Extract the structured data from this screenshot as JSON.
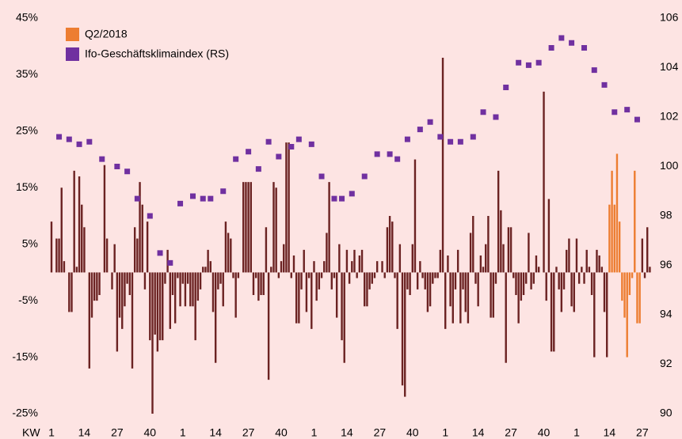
{
  "chart_data": {
    "type": "bar",
    "x_label": "KW",
    "categories": [
      "1",
      null,
      null,
      null,
      null,
      null,
      null,
      null,
      null,
      null,
      null,
      null,
      null,
      "14",
      null,
      null,
      null,
      null,
      null,
      null,
      null,
      null,
      null,
      null,
      null,
      null,
      "27",
      null,
      null,
      null,
      null,
      null,
      null,
      null,
      null,
      null,
      null,
      null,
      null,
      "40",
      null,
      null,
      null,
      null,
      null,
      null,
      null,
      null,
      null,
      null,
      null,
      null,
      "1",
      null,
      null,
      null,
      null,
      null,
      null,
      null,
      null,
      null,
      null,
      null,
      null,
      "14",
      null,
      null,
      null,
      null,
      null,
      null,
      null,
      null,
      null,
      null,
      null,
      null,
      "27",
      null,
      null,
      null,
      null,
      null,
      null,
      null,
      null,
      null,
      null,
      null,
      null,
      "40",
      null,
      null,
      null,
      null,
      null,
      null,
      null,
      null,
      null,
      null,
      null,
      null,
      "1",
      null,
      null,
      null,
      null,
      null,
      null,
      null,
      null,
      null,
      null,
      null,
      null,
      "14",
      null,
      null,
      null,
      null,
      null,
      null,
      null,
      null,
      null,
      null,
      null,
      null,
      "27",
      null,
      null,
      null,
      null,
      null,
      null,
      null,
      null,
      null,
      null,
      null,
      null,
      "40",
      null,
      null,
      null,
      null,
      null,
      null,
      null,
      null,
      null,
      null,
      null,
      null,
      "1",
      null,
      null,
      null,
      null,
      null,
      null,
      null,
      null,
      null,
      null,
      null,
      null,
      "14",
      null,
      null,
      null,
      null,
      null,
      null,
      null,
      null,
      null,
      null,
      null,
      null,
      "27",
      null,
      null,
      null,
      null,
      null,
      null,
      null,
      null,
      null,
      null,
      null,
      null,
      "40",
      null,
      null,
      null,
      null,
      null,
      null,
      null,
      null,
      null,
      null,
      null,
      null,
      "1",
      null,
      null,
      null,
      null,
      null,
      null,
      null,
      null,
      null,
      null,
      null,
      null,
      "14",
      null,
      null,
      null,
      null,
      null,
      null,
      null,
      null,
      null,
      null,
      null,
      null,
      "27",
      null,
      null,
      null
    ],
    "series": [
      {
        "color": "#6b2222",
        "values": [
          9,
          0,
          6,
          6,
          15,
          2,
          0,
          -7,
          -7,
          18,
          1,
          17,
          12,
          8,
          0,
          -17,
          -8,
          -5,
          -5,
          -4,
          0,
          19,
          6,
          0,
          -3,
          5,
          -14,
          -8,
          -10,
          -6,
          -2,
          -4,
          -17,
          8,
          6,
          16,
          12,
          -3,
          9,
          -12,
          -25,
          -11,
          -14,
          -12,
          -12,
          -2,
          4,
          -10,
          -4,
          -9,
          -1,
          -6,
          -2,
          -6,
          -2,
          -6,
          -6,
          -12,
          -5,
          -3,
          1,
          1,
          4,
          2,
          -7,
          -16,
          -3,
          -2,
          -6,
          9,
          7,
          6,
          -1,
          -8,
          -1,
          0,
          16,
          16,
          16,
          16,
          -4,
          -1,
          -5,
          -4,
          -4,
          8,
          -19,
          1,
          16,
          15,
          -1,
          2,
          5,
          23,
          23,
          -1,
          3,
          -9,
          -9,
          -3,
          4,
          -7,
          -1,
          -10,
          2,
          -5,
          -3,
          -1,
          2,
          7,
          16,
          -3,
          -1,
          -8,
          5,
          -12,
          -16,
          4,
          -2,
          2,
          4,
          -1,
          3,
          4,
          -6,
          -6,
          -3,
          -2,
          -1,
          2,
          0,
          2,
          -1,
          8,
          10,
          9,
          -1,
          -10,
          5,
          -20,
          -22,
          -3,
          -4,
          5,
          20,
          -3,
          2,
          -1,
          -3,
          -7,
          -6,
          -2,
          -1,
          -1,
          4,
          38,
          -10,
          3,
          -6,
          -9,
          -3,
          4,
          -9,
          -3,
          -7,
          -9,
          7,
          10,
          -2,
          -6,
          3,
          1,
          5,
          10,
          -8,
          -8,
          -2,
          18,
          11,
          5,
          -16,
          8,
          8,
          -1,
          -4,
          -9,
          -5,
          -4,
          -2,
          7,
          -3,
          -2,
          3,
          1,
          0,
          32,
          -5,
          13,
          -14,
          -14,
          1,
          -3,
          -7,
          -3,
          4,
          6,
          -6,
          -7,
          6,
          -2,
          1,
          -2,
          4,
          1,
          -4,
          -15,
          4,
          3,
          1,
          -7,
          -15,
          null,
          null,
          null,
          null,
          null,
          null,
          null,
          null,
          null,
          null,
          null,
          null,
          null,
          6,
          -1,
          8,
          1
        ]
      },
      {
        "name": "Q2/2018",
        "color": "#ed7d31",
        "values": [
          null,
          null,
          null,
          null,
          null,
          null,
          null,
          null,
          null,
          null,
          null,
          null,
          null,
          null,
          null,
          null,
          null,
          null,
          null,
          null,
          null,
          null,
          null,
          null,
          null,
          null,
          null,
          null,
          null,
          null,
          null,
          null,
          null,
          null,
          null,
          null,
          null,
          null,
          null,
          null,
          null,
          null,
          null,
          null,
          null,
          null,
          null,
          null,
          null,
          null,
          null,
          null,
          null,
          null,
          null,
          null,
          null,
          null,
          null,
          null,
          null,
          null,
          null,
          null,
          null,
          null,
          null,
          null,
          null,
          null,
          null,
          null,
          null,
          null,
          null,
          null,
          null,
          null,
          null,
          null,
          null,
          null,
          null,
          null,
          null,
          null,
          null,
          null,
          null,
          null,
          null,
          null,
          null,
          null,
          null,
          null,
          null,
          null,
          null,
          null,
          null,
          null,
          null,
          null,
          null,
          null,
          null,
          null,
          null,
          null,
          null,
          null,
          null,
          null,
          null,
          null,
          null,
          null,
          null,
          null,
          null,
          null,
          null,
          null,
          null,
          null,
          null,
          null,
          null,
          null,
          null,
          null,
          null,
          null,
          null,
          null,
          null,
          null,
          null,
          null,
          null,
          null,
          null,
          null,
          null,
          null,
          null,
          null,
          null,
          null,
          null,
          null,
          null,
          null,
          null,
          null,
          null,
          null,
          null,
          null,
          null,
          null,
          null,
          null,
          null,
          null,
          null,
          null,
          null,
          null,
          null,
          null,
          null,
          null,
          null,
          null,
          null,
          null,
          null,
          null,
          null,
          null,
          null,
          null,
          null,
          null,
          null,
          null,
          null,
          null,
          null,
          null,
          null,
          null,
          null,
          null,
          null,
          null,
          null,
          null,
          null,
          null,
          null,
          null,
          null,
          null,
          null,
          null,
          null,
          null,
          null,
          null,
          null,
          null,
          null,
          null,
          null,
          null,
          null,
          null,
          null,
          12,
          18,
          12,
          21,
          9,
          -5,
          -8,
          -15,
          -4,
          -1,
          18,
          -9,
          -9,
          null,
          null,
          null,
          null
        ]
      },
      {
        "name": "Ifo-Geschäftsklimaindex (RS)",
        "type": "scatter",
        "axis": "y2",
        "color": "#7030a0",
        "values": [
          null,
          null,
          null,
          101.2,
          null,
          null,
          null,
          101.1,
          null,
          null,
          null,
          100.9,
          null,
          null,
          null,
          101.0,
          null,
          null,
          null,
          null,
          100.3,
          null,
          null,
          null,
          null,
          null,
          100.0,
          null,
          null,
          null,
          99.8,
          null,
          null,
          null,
          98.7,
          null,
          null,
          null,
          null,
          98.0,
          null,
          null,
          null,
          96.5,
          null,
          null,
          null,
          96.1,
          null,
          null,
          null,
          98.5,
          null,
          null,
          null,
          null,
          98.8,
          null,
          null,
          null,
          98.7,
          null,
          null,
          98.7,
          null,
          null,
          null,
          null,
          99.0,
          null,
          null,
          null,
          null,
          100.3,
          null,
          null,
          null,
          null,
          100.6,
          null,
          null,
          null,
          99.9,
          null,
          null,
          null,
          101.0,
          null,
          null,
          null,
          100.4,
          null,
          null,
          null,
          null,
          100.8,
          null,
          null,
          101.1,
          null,
          null,
          null,
          null,
          100.9,
          null,
          null,
          null,
          99.6,
          null,
          null,
          null,
          null,
          98.7,
          null,
          null,
          98.7,
          null,
          null,
          null,
          98.9,
          null,
          null,
          null,
          null,
          99.6,
          null,
          null,
          null,
          null,
          100.5,
          null,
          null,
          null,
          null,
          100.5,
          null,
          null,
          100.3,
          null,
          null,
          null,
          101.1,
          null,
          null,
          null,
          null,
          101.5,
          null,
          null,
          null,
          101.8,
          null,
          null,
          null,
          101.2,
          null,
          null,
          null,
          101.0,
          null,
          null,
          null,
          101.0,
          null,
          null,
          null,
          null,
          101.2,
          null,
          null,
          null,
          102.2,
          null,
          null,
          null,
          null,
          102.0,
          null,
          null,
          null,
          103.2,
          null,
          null,
          null,
          null,
          104.2,
          null,
          null,
          null,
          104.1,
          null,
          null,
          null,
          104.2,
          null,
          null,
          null,
          null,
          104.8,
          null,
          null,
          null,
          105.2,
          null,
          null,
          null,
          105.0,
          null,
          null,
          null,
          null,
          104.8,
          null,
          null,
          null,
          103.9,
          null,
          null,
          null,
          103.3,
          null,
          null,
          null,
          102.2,
          null,
          null,
          null,
          null,
          102.3,
          null,
          null,
          null,
          101.9,
          null,
          null,
          null,
          null,
          null
        ]
      }
    ],
    "ylim": [
      -25,
      45
    ],
    "yticks": [
      {
        "value": 45,
        "label": "45%"
      },
      {
        "value": 35,
        "label": "35%"
      },
      {
        "value": 25,
        "label": "25%"
      },
      {
        "value": 15,
        "label": "15%"
      },
      {
        "value": 5,
        "label": "5%"
      },
      {
        "value": -5,
        "label": "-5%"
      },
      {
        "value": -15,
        "label": "-15%"
      },
      {
        "value": -25,
        "label": "-25%"
      }
    ],
    "y2lim": [
      90,
      106
    ],
    "y2ticks": [
      106,
      104,
      102,
      100,
      98,
      96,
      94,
      92,
      90
    ],
    "grid": false,
    "legend": "top-left"
  }
}
